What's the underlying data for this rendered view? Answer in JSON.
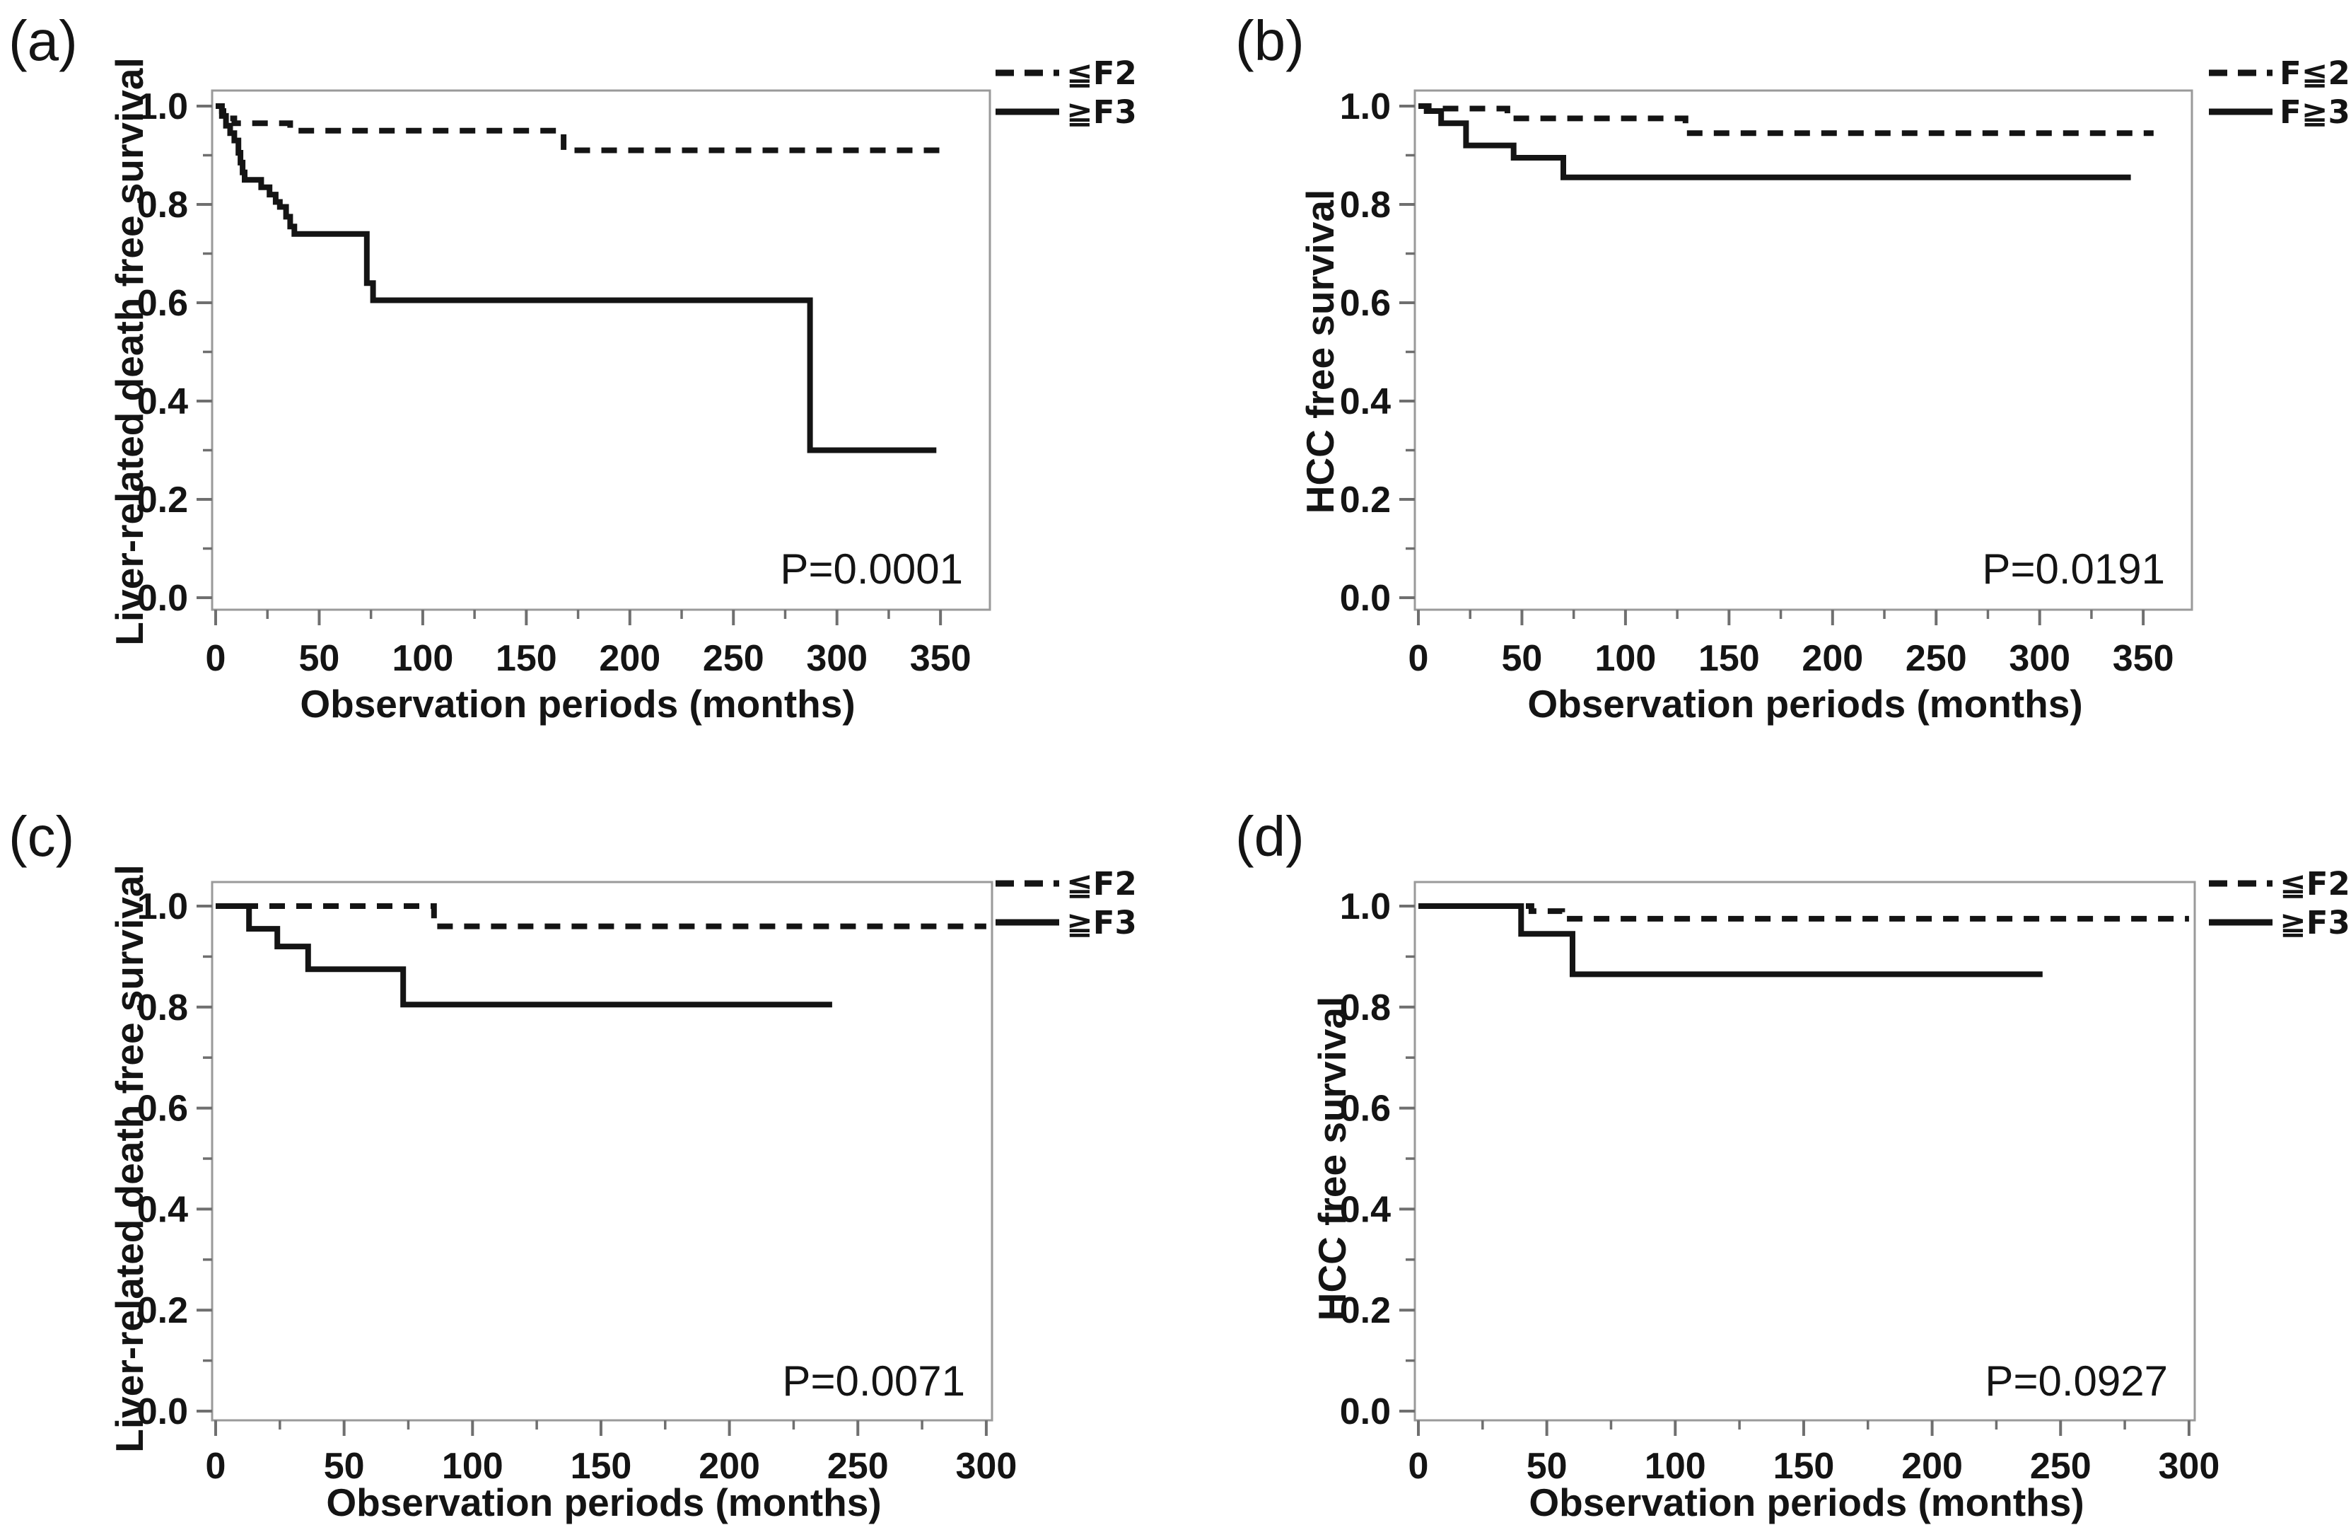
{
  "page": {
    "background": "#ffffff"
  },
  "styles": {
    "curve_color": "#141414",
    "axis_box_color": "#9a9a9a",
    "tick_color": "#6f6f6f",
    "text_color": "#141414"
  },
  "chart_data": [
    {
      "panel_label": "(a)",
      "type": "line",
      "chart_kind": "kaplan_meier_survival_step",
      "xlabel": "Observation periods (months)",
      "ylabel": "Liver-related death free survival",
      "p_value_annotation": "P=0.0001",
      "x_ticks": [
        0,
        50,
        100,
        150,
        200,
        250,
        300,
        350
      ],
      "x_minor_tick_step": 25,
      "y_tick_labels": [
        "0.0",
        "0.2",
        "0.4",
        "0.6",
        "0.8",
        "1.0"
      ],
      "y_minor_tick_step": 0.1,
      "xlim": [
        0,
        373
      ],
      "ylim": [
        -0.03,
        1.03
      ],
      "grid": false,
      "legend_position": "top-right-outside",
      "series": [
        {
          "name": "≦F2",
          "line_style": "dashed",
          "steps_x_months_y_survival": [
            [
              0,
              1.0
            ],
            [
              3,
              0.99
            ],
            [
              6,
              0.975
            ],
            [
              9,
              0.965
            ],
            [
              36,
              0.95
            ],
            [
              168,
              0.91
            ]
          ],
          "end_x": 353
        },
        {
          "name": "≧F3",
          "line_style": "solid",
          "steps_x_months_y_survival": [
            [
              0,
              1.0
            ],
            [
              3,
              0.98
            ],
            [
              5,
              0.96
            ],
            [
              7,
              0.945
            ],
            [
              9,
              0.93
            ],
            [
              11,
              0.905
            ],
            [
              12,
              0.885
            ],
            [
              13,
              0.865
            ],
            [
              14,
              0.85
            ],
            [
              22,
              0.835
            ],
            [
              26,
              0.82
            ],
            [
              29,
              0.805
            ],
            [
              31,
              0.795
            ],
            [
              34,
              0.775
            ],
            [
              36,
              0.755
            ],
            [
              38,
              0.74
            ],
            [
              73,
              0.64
            ],
            [
              76,
              0.605
            ],
            [
              287,
              0.3
            ]
          ],
          "end_x": 348
        }
      ]
    },
    {
      "panel_label": "(b)",
      "type": "line",
      "chart_kind": "kaplan_meier_survival_step",
      "xlabel": "Observation periods (months)",
      "ylabel": "HCC free survival",
      "p_value_annotation": "P=0.0191",
      "x_ticks": [
        0,
        50,
        100,
        150,
        200,
        250,
        300,
        350
      ],
      "x_minor_tick_step": 25,
      "y_tick_labels": [
        "0.0",
        "0.2",
        "0.4",
        "0.6",
        "0.8",
        "1.0"
      ],
      "y_minor_tick_step": 0.1,
      "xlim": [
        0,
        373
      ],
      "ylim": [
        -0.03,
        1.03
      ],
      "grid": false,
      "legend_position": "top-right-outside",
      "series": [
        {
          "name": "F≦2",
          "line_style": "dashed",
          "steps_x_months_y_survival": [
            [
              0,
              1.0
            ],
            [
              5,
              0.995
            ],
            [
              43,
              0.975
            ],
            [
              129,
              0.945
            ]
          ],
          "end_x": 355
        },
        {
          "name": "F≧3",
          "line_style": "solid",
          "steps_x_months_y_survival": [
            [
              0,
              1.0
            ],
            [
              4,
              0.99
            ],
            [
              11,
              0.965
            ],
            [
              23,
              0.92
            ],
            [
              46,
              0.895
            ],
            [
              70,
              0.855
            ]
          ],
          "end_x": 344
        }
      ]
    },
    {
      "panel_label": "(c)",
      "type": "line",
      "chart_kind": "kaplan_meier_survival_step",
      "xlabel": "Observation periods (months)",
      "ylabel": "Liver-related death free survival",
      "p_value_annotation": "P=0.0071",
      "x_ticks": [
        0,
        50,
        100,
        150,
        200,
        250,
        300
      ],
      "x_minor_tick_step": 25,
      "y_tick_labels": [
        "0.0",
        "0.2",
        "0.4",
        "0.6",
        "0.8",
        "1.0"
      ],
      "y_minor_tick_step": 0.1,
      "xlim": [
        0,
        302
      ],
      "ylim": [
        -0.03,
        1.03
      ],
      "grid": false,
      "legend_position": "top-right-outside",
      "series": [
        {
          "name": "≦F2",
          "line_style": "dashed",
          "steps_x_months_y_survival": [
            [
              0,
              1.0
            ],
            [
              85,
              0.96
            ]
          ],
          "end_x": 300
        },
        {
          "name": "≧F3",
          "line_style": "solid",
          "steps_x_months_y_survival": [
            [
              0,
              1.0
            ],
            [
              13,
              0.955
            ],
            [
              24,
              0.92
            ],
            [
              36,
              0.875
            ],
            [
              73,
              0.805
            ]
          ],
          "end_x": 240
        }
      ]
    },
    {
      "panel_label": "(d)",
      "type": "line",
      "chart_kind": "kaplan_meier_survival_step",
      "xlabel": "Observation periods (months)",
      "ylabel": "HCC free survival",
      "p_value_annotation": "P=0.0927",
      "x_ticks": [
        0,
        50,
        100,
        150,
        200,
        250,
        300
      ],
      "x_minor_tick_step": 25,
      "y_tick_labels": [
        "0.0",
        "0.2",
        "0.4",
        "0.6",
        "0.8",
        "1.0"
      ],
      "y_minor_tick_step": 0.1,
      "xlim": [
        0,
        302
      ],
      "ylim": [
        -0.03,
        1.03
      ],
      "grid": false,
      "legend_position": "top-right-outside",
      "series": [
        {
          "name": "≦F2",
          "line_style": "dashed",
          "steps_x_months_y_survival": [
            [
              0,
              1.0
            ],
            [
              44,
              0.99
            ],
            [
              56,
              0.975
            ]
          ],
          "end_x": 300
        },
        {
          "name": "≧F3",
          "line_style": "solid",
          "steps_x_months_y_survival": [
            [
              0,
              1.0
            ],
            [
              40,
              0.945
            ],
            [
              60,
              0.865
            ]
          ],
          "end_x": 243
        }
      ]
    }
  ]
}
